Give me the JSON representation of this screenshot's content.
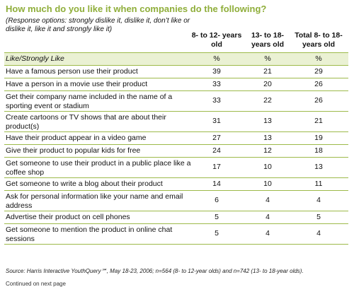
{
  "title": "How much do you like it when companies do the following?",
  "subtitle": "(Response options: strongly dislike it, dislike it, don’t like or dislike it, like it and strongly like it)",
  "columns": [
    "8- to 12- years old",
    "13- to 18- years old",
    "Total 8- to 18- years old"
  ],
  "subheader": {
    "label": "Like/Strongly Like",
    "units": [
      "%",
      "%",
      "%"
    ]
  },
  "rows": [
    {
      "label": "Have a famous person use their product",
      "values": [
        "39",
        "21",
        "29"
      ]
    },
    {
      "label": "Have a person in a movie use their product",
      "values": [
        "33",
        "20",
        "26"
      ]
    },
    {
      "label": "Get their company name included in the name of a sporting event or stadium",
      "values": [
        "33",
        "22",
        "26"
      ]
    },
    {
      "label": "Create cartoons or TV shows that are about their product(s)",
      "values": [
        "31",
        "13",
        "21"
      ]
    },
    {
      "label": "Have their product appear in a  video game",
      "values": [
        "27",
        "13",
        "19"
      ]
    },
    {
      "label": "Give their product to popular kids for free",
      "values": [
        "24",
        "12",
        "18"
      ]
    },
    {
      "label": "Get someone to use their product in a public place like a coffee shop",
      "values": [
        "17",
        "10",
        "13"
      ]
    },
    {
      "label": "Get someone to write a blog about their product",
      "values": [
        "14",
        "10",
        "11"
      ]
    },
    {
      "label": "Ask for personal information like your name and email address",
      "values": [
        "6",
        "4",
        "4"
      ]
    },
    {
      "label": "Advertise their product on cell phones",
      "values": [
        "5",
        "4",
        "5"
      ]
    },
    {
      "label": "Get someone to mention the product in online chat sessions",
      "values": [
        "5",
        "4",
        "4"
      ]
    }
  ],
  "source": "Source: Harris Interactive YouthQuery℠, May 18-23, 2006; n=564 (8- to 12-year olds) and n=742 (13- to 18-year olds).",
  "footer_fragment": "Continued on next page",
  "colors": {
    "accent": "#8fae3a",
    "rule": "#9dba4a",
    "shade": "#eaf1d3"
  }
}
